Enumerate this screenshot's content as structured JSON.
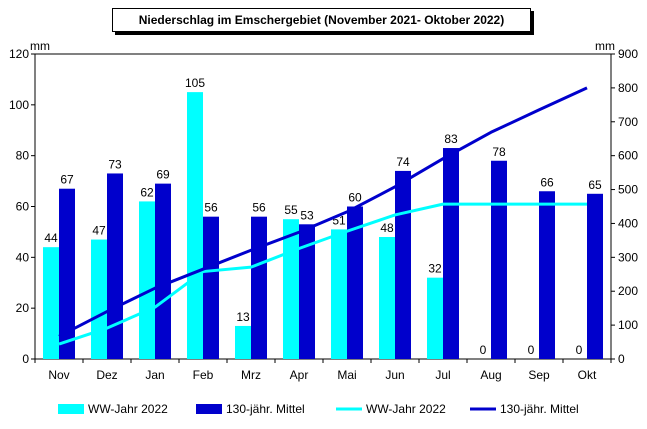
{
  "chart_data": {
    "type": "bar",
    "title": "Niederschlag im Emschergebiet (November 2021- Oktober 2022)",
    "ylabel_left": "mm",
    "ylabel_right": "mm",
    "ylim_left": [
      0,
      120
    ],
    "ylim_right": [
      0,
      900
    ],
    "yticks_left": [
      0,
      20,
      40,
      60,
      80,
      100,
      120
    ],
    "yticks_right": [
      0,
      100,
      200,
      300,
      400,
      500,
      600,
      700,
      800,
      900
    ],
    "grid": false,
    "legend_position": "bottom",
    "categories": [
      "Nov",
      "Dez",
      "Jan",
      "Feb",
      "Mrz",
      "Apr",
      "Mai",
      "Jun",
      "Jul",
      "Aug",
      "Sep",
      "Okt"
    ],
    "series": [
      {
        "name": "WW-Jahr 2022",
        "type": "bar",
        "axis": "left",
        "color": "#00FFFF",
        "values": [
          44,
          47,
          62,
          105,
          13,
          55,
          51,
          48,
          32,
          0,
          0,
          0
        ]
      },
      {
        "name": "130-jähr. Mittel",
        "type": "bar",
        "axis": "left",
        "color": "#0000CC",
        "values": [
          67,
          73,
          69,
          56,
          56,
          53,
          60,
          74,
          83,
          78,
          66,
          65
        ]
      },
      {
        "name": "WW-Jahr 2022",
        "type": "line",
        "axis": "right",
        "color": "#00FFFF",
        "values": [
          44,
          91,
          153,
          258,
          271,
          326,
          377,
          425,
          457,
          457,
          457,
          457
        ]
      },
      {
        "name": "130-jähr. Mittel",
        "type": "line",
        "axis": "right",
        "color": "#0000CC",
        "values": [
          67,
          140,
          209,
          265,
          321,
          374,
          434,
          508,
          591,
          669,
          735,
          800
        ]
      }
    ]
  }
}
